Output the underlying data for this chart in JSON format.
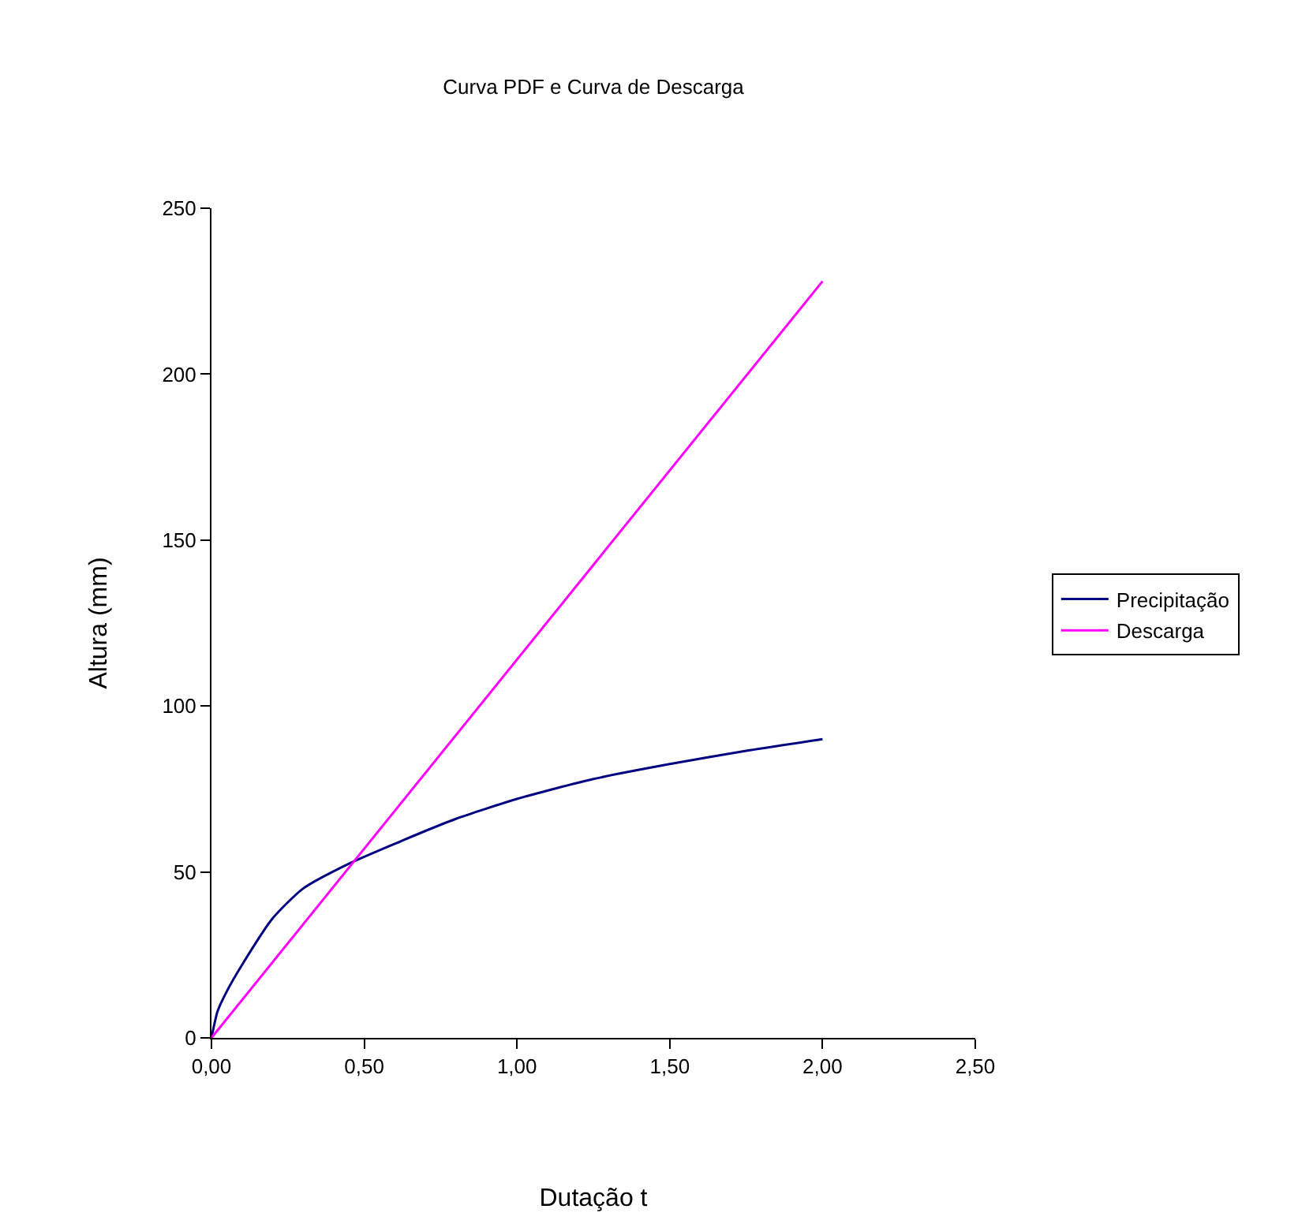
{
  "chart_data": {
    "type": "line",
    "title": "Curva PDF e Curva de Descarga",
    "xlabel": "Dutação t",
    "ylabel": "Altura (mm)",
    "series": [
      {
        "name": "Precipitação",
        "color": "#000080",
        "x": [
          0,
          0.02,
          0.05,
          0.1,
          0.2,
          0.3,
          0.45,
          0.6,
          0.8,
          1.0,
          1.25,
          1.5,
          1.75,
          2.0
        ],
        "values": [
          0,
          8,
          14,
          22,
          36,
          45,
          52.5,
          58.5,
          66,
          72,
          78,
          82.5,
          86.5,
          90
        ]
      },
      {
        "name": "Descarga",
        "color": "#ff00ff",
        "x": [
          0,
          2.0
        ],
        "values": [
          0,
          228
        ]
      }
    ],
    "xlim": [
      0,
      2.5
    ],
    "xticks": [
      {
        "value": 0,
        "label": "0,00"
      },
      {
        "value": 0.5,
        "label": "0,50"
      },
      {
        "value": 1.0,
        "label": "1,00"
      },
      {
        "value": 1.5,
        "label": "1,50"
      },
      {
        "value": 2.0,
        "label": "2,00"
      },
      {
        "value": 2.5,
        "label": "2,50"
      }
    ],
    "ylim": [
      0,
      250
    ],
    "yticks": [
      0,
      50,
      100,
      150,
      200,
      250
    ],
    "legend": "right",
    "marker": "none",
    "line_style": "solid"
  }
}
